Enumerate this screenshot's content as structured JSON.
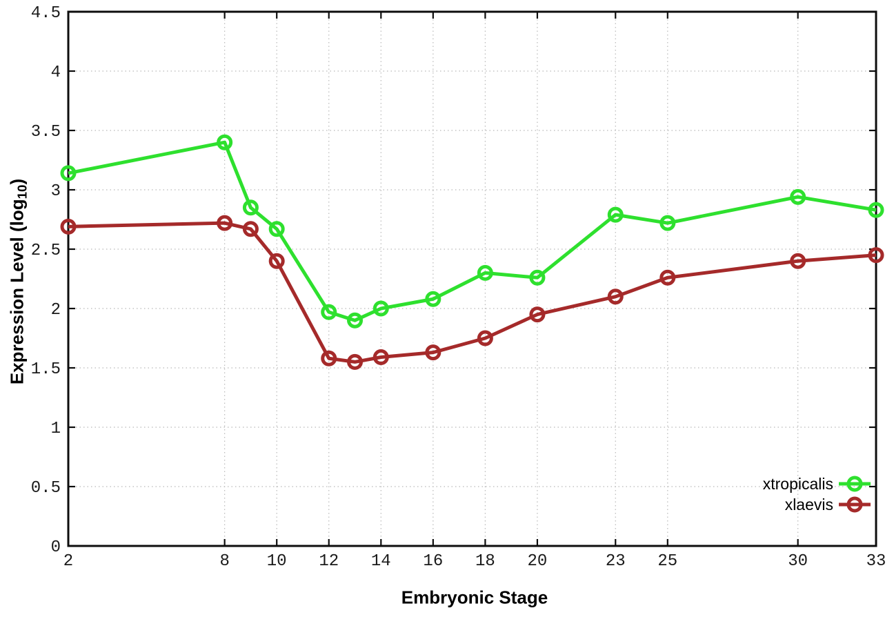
{
  "chart_data": {
    "type": "line",
    "title": "",
    "xlabel": "Embryonic Stage",
    "ylabel": "Expression Level (log10)",
    "ylabel_parts": {
      "prefix": "Expression Level (log",
      "sub": "10",
      "suffix": ")"
    },
    "x": [
      2,
      8,
      9,
      10,
      12,
      13,
      14,
      16,
      18,
      20,
      23,
      25,
      30,
      33
    ],
    "series": [
      {
        "name": "xtropicalis",
        "color": "#2ee02e",
        "values": [
          3.14,
          3.4,
          2.85,
          2.67,
          1.97,
          1.9,
          2.0,
          2.08,
          2.3,
          2.26,
          2.79,
          2.72,
          2.94,
          2.83
        ]
      },
      {
        "name": "xlaevis",
        "color": "#a52a2a",
        "values": [
          2.69,
          2.72,
          2.67,
          2.4,
          1.58,
          1.55,
          1.59,
          1.63,
          1.75,
          1.95,
          2.1,
          2.26,
          2.4,
          2.45
        ]
      }
    ],
    "xlim": [
      2,
      33
    ],
    "ylim": [
      0,
      4.5
    ],
    "x_ticks": [
      2,
      8,
      10,
      12,
      14,
      16,
      18,
      20,
      23,
      25,
      30,
      33
    ],
    "x_tick_labels": [
      "2",
      "8",
      "10",
      "12",
      "14",
      "16",
      "18",
      "20",
      "23",
      "25",
      "30",
      "33"
    ],
    "y_ticks": [
      0,
      0.5,
      1,
      1.5,
      2,
      2.5,
      3,
      3.5,
      4,
      4.5
    ],
    "y_tick_labels": [
      "0",
      "0.5",
      "1",
      "1.5",
      "2",
      "2.5",
      "3",
      "3.5",
      "4",
      "4.5"
    ],
    "grid": true,
    "legend_position": "bottom-right-inside",
    "colors": {
      "background": "#ffffff",
      "grid": "#b8b8b8",
      "axis": "#0d0d0d",
      "tick_text": "#1a1a1a"
    }
  }
}
